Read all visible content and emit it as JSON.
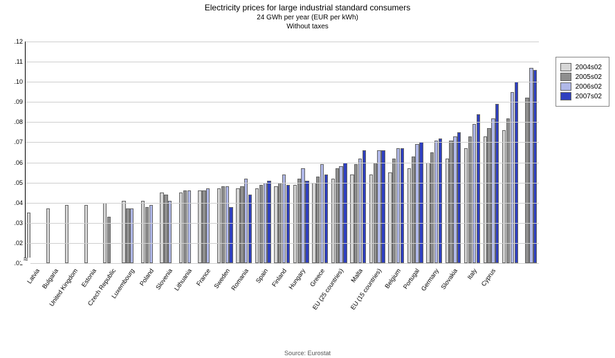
{
  "chart": {
    "type": "bar",
    "title": "Electricity prices for large industrial standard consumers",
    "subtitle1": "24 GWh per year (EUR per kWh)",
    "subtitle2": "Without taxes",
    "source": "Source: Eurostat",
    "background_color": "#ffffff",
    "grid_color": "#cfcfcf",
    "axis_color": "#000000",
    "title_fontsize": 12,
    "subtitle_fontsize": 10,
    "label_fontsize": 9,
    "ylim": [
      0.01,
      0.12
    ],
    "ytick_step": 0.01,
    "ytick_labels": [
      ".01",
      ".02",
      ".03",
      ".04",
      ".05",
      ".06",
      ".07",
      ".08",
      ".09",
      ".10",
      ".11",
      ".12"
    ],
    "axis_break": true,
    "series": [
      {
        "key": "s2004",
        "label": "2004s02",
        "color": "#d6d6d6"
      },
      {
        "key": "s2005",
        "label": "2005s02",
        "color": "#8f8f8f"
      },
      {
        "key": "s2006",
        "label": "2006s02",
        "color": "#b0b8e8"
      },
      {
        "key": "s2007",
        "label": "2007s02",
        "color": "#2e3fbf"
      }
    ],
    "categories": [
      {
        "label": "Latvia",
        "values": {
          "s2004": 0.035,
          "s2005": null,
          "s2006": null,
          "s2007": null
        }
      },
      {
        "label": "Bulgaria",
        "values": {
          "s2004": 0.037,
          "s2005": null,
          "s2006": null,
          "s2007": null
        }
      },
      {
        "label": "United Kingdom",
        "values": {
          "s2004": 0.039,
          "s2005": null,
          "s2006": null,
          "s2007": null
        }
      },
      {
        "label": "Estonia",
        "values": {
          "s2004": 0.039,
          "s2005": null,
          "s2006": null,
          "s2007": null
        }
      },
      {
        "label": "Czech Republic",
        "values": {
          "s2004": 0.04,
          "s2005": 0.033,
          "s2006": null,
          "s2007": null
        }
      },
      {
        "label": "Luxembourg",
        "values": {
          "s2004": 0.041,
          "s2005": 0.037,
          "s2006": 0.037,
          "s2007": null
        }
      },
      {
        "label": "Poland",
        "values": {
          "s2004": 0.041,
          "s2005": 0.038,
          "s2006": 0.039,
          "s2007": null
        }
      },
      {
        "label": "Slovenia",
        "values": {
          "s2004": 0.045,
          "s2005": 0.044,
          "s2006": 0.041,
          "s2007": null
        }
      },
      {
        "label": "Lithuania",
        "values": {
          "s2004": 0.045,
          "s2005": 0.046,
          "s2006": 0.046,
          "s2007": null
        }
      },
      {
        "label": "France",
        "values": {
          "s2004": 0.046,
          "s2005": 0.046,
          "s2006": 0.047,
          "s2007": null
        }
      },
      {
        "label": "Sweden",
        "values": {
          "s2004": 0.047,
          "s2005": 0.048,
          "s2006": 0.048,
          "s2007": 0.038
        }
      },
      {
        "label": "Romania",
        "values": {
          "s2004": 0.047,
          "s2005": 0.048,
          "s2006": 0.052,
          "s2007": 0.044
        }
      },
      {
        "label": "Spain",
        "values": {
          "s2004": 0.047,
          "s2005": 0.049,
          "s2006": 0.05,
          "s2007": 0.051
        }
      },
      {
        "label": "Finland",
        "values": {
          "s2004": 0.048,
          "s2005": 0.05,
          "s2006": 0.054,
          "s2007": 0.049
        }
      },
      {
        "label": "Hungary",
        "values": {
          "s2004": 0.049,
          "s2005": 0.052,
          "s2006": 0.057,
          "s2007": 0.051
        }
      },
      {
        "label": "Greece",
        "values": {
          "s2004": 0.05,
          "s2005": 0.053,
          "s2006": 0.059,
          "s2007": 0.054
        }
      },
      {
        "label": "EU (25 countries)",
        "values": {
          "s2004": 0.052,
          "s2005": 0.057,
          "s2006": 0.058,
          "s2007": 0.06
        }
      },
      {
        "label": "Malta",
        "values": {
          "s2004": 0.054,
          "s2005": 0.059,
          "s2006": 0.062,
          "s2007": 0.066
        }
      },
      {
        "label": "EU (15 countries)",
        "values": {
          "s2004": 0.054,
          "s2005": 0.06,
          "s2006": 0.066,
          "s2007": 0.066
        }
      },
      {
        "label": "Belgium",
        "values": {
          "s2004": 0.055,
          "s2005": 0.062,
          "s2006": 0.067,
          "s2007": 0.067
        }
      },
      {
        "label": "Portugal",
        "values": {
          "s2004": 0.057,
          "s2005": 0.063,
          "s2006": 0.069,
          "s2007": 0.07
        }
      },
      {
        "label": "Germany",
        "values": {
          "s2004": 0.06,
          "s2005": 0.065,
          "s2006": 0.071,
          "s2007": 0.072
        }
      },
      {
        "label": "Slovakia",
        "values": {
          "s2004": 0.062,
          "s2005": 0.071,
          "s2006": 0.073,
          "s2007": 0.075
        }
      },
      {
        "label": "Italy",
        "values": {
          "s2004": 0.067,
          "s2005": 0.073,
          "s2006": 0.079,
          "s2007": 0.084
        }
      },
      {
        "label": "Cyprus",
        "values": {
          "s2004": 0.073,
          "s2005": 0.077,
          "s2006": 0.082,
          "s2007": 0.089
        }
      },
      {
        "label": "",
        "values": {
          "s2004": 0.076,
          "s2005": 0.082,
          "s2006": 0.095,
          "s2007": 0.1
        }
      },
      {
        "label": "",
        "values": {
          "s2004": null,
          "s2005": 0.092,
          "s2006": 0.107,
          "s2007": 0.106
        }
      }
    ],
    "legend_position": "right-top",
    "bar_gap_ratio": 0.15
  }
}
